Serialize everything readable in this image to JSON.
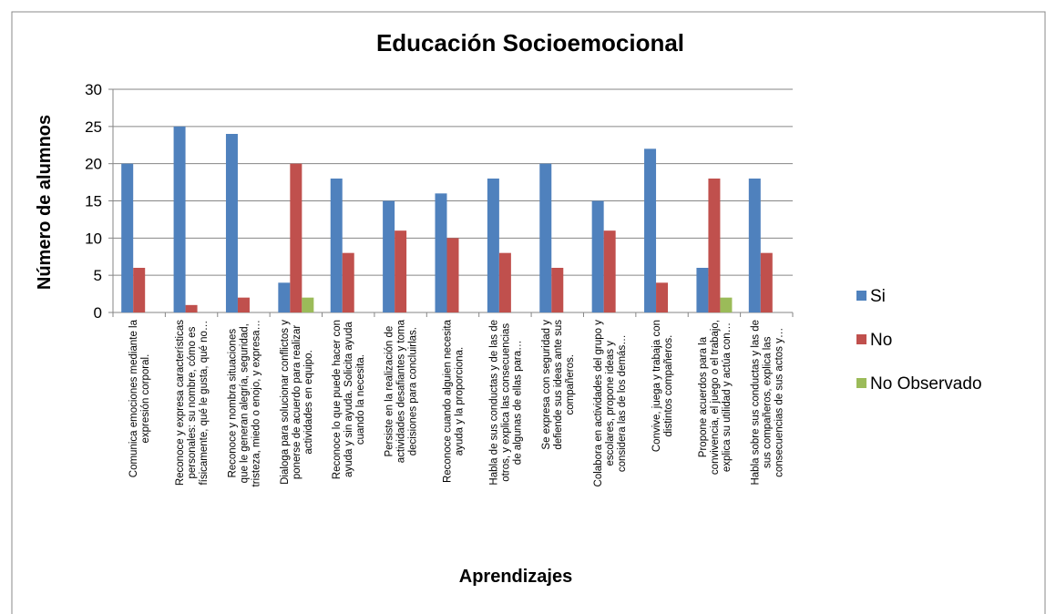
{
  "chart_data": {
    "type": "bar",
    "title": "Educación Socioemocional",
    "y_label": "Número de alumnos",
    "x_label": "Aprendizajes",
    "categories": [
      [
        "Comunica emociones mediante la",
        "expresión corporal."
      ],
      [
        "Reconoce y expresa características",
        "personales: su nombre, cómo es",
        "físicamente, qué le gusta, qué no…"
      ],
      [
        "Reconoce y nombra situaciones",
        "que le generan alegría, seguridad,",
        "tristeza, miedo o enojo, y expresa…"
      ],
      [
        "Dialoga para solucionar conflictos y",
        "ponerse de acuerdo para realizar",
        "actividades en equipo."
      ],
      [
        "Reconoce lo que puede hacer con",
        "ayuda y sin ayuda. Solicita ayuda",
        "cuando la necesita."
      ],
      [
        "Persiste en la realización de",
        "actividades desafiantes y toma",
        "decisiones para concluirlas."
      ],
      [
        "Reconoce cuando alguien necesita",
        "ayuda y la proporciona."
      ],
      [
        "Habla de sus conductas y de las de",
        "otros, y explica las consecuencias",
        "de algunas de ellas para…"
      ],
      [
        "Se expresa con seguridad y",
        "defiende sus ideas ante sus",
        "compañeros."
      ],
      [
        "Colabora en actividades del grupo y",
        "escolares, propone ideas y",
        "considera las de los demás…"
      ],
      [
        "Convive, juega y trabaja con",
        "distintos compañeros."
      ],
      [
        "Propone acuerdos para la",
        "convivencia, el juego o el trabajo,",
        "explica su utilidad y actúa con…"
      ],
      [
        "Habla sobre sus conductas y las de",
        "sus compañeros, explica las",
        "consecuencias de sus actos y…"
      ]
    ],
    "series": [
      {
        "name": "Si",
        "color": "#4f81bd",
        "values": [
          20,
          25,
          24,
          4,
          18,
          15,
          16,
          18,
          20,
          15,
          22,
          6,
          18
        ]
      },
      {
        "name": "No",
        "color": "#c0504d",
        "values": [
          6,
          1,
          2,
          20,
          8,
          11,
          10,
          8,
          6,
          11,
          4,
          18,
          8
        ]
      },
      {
        "name": "No Observado",
        "color": "#9bbb59",
        "values": [
          0,
          0,
          0,
          2,
          0,
          0,
          0,
          0,
          0,
          0,
          0,
          2,
          0
        ]
      }
    ],
    "ylim": [
      0,
      30
    ],
    "yticks": [
      0,
      5,
      10,
      15,
      20,
      25,
      30
    ],
    "grid": true,
    "legend": "right"
  }
}
